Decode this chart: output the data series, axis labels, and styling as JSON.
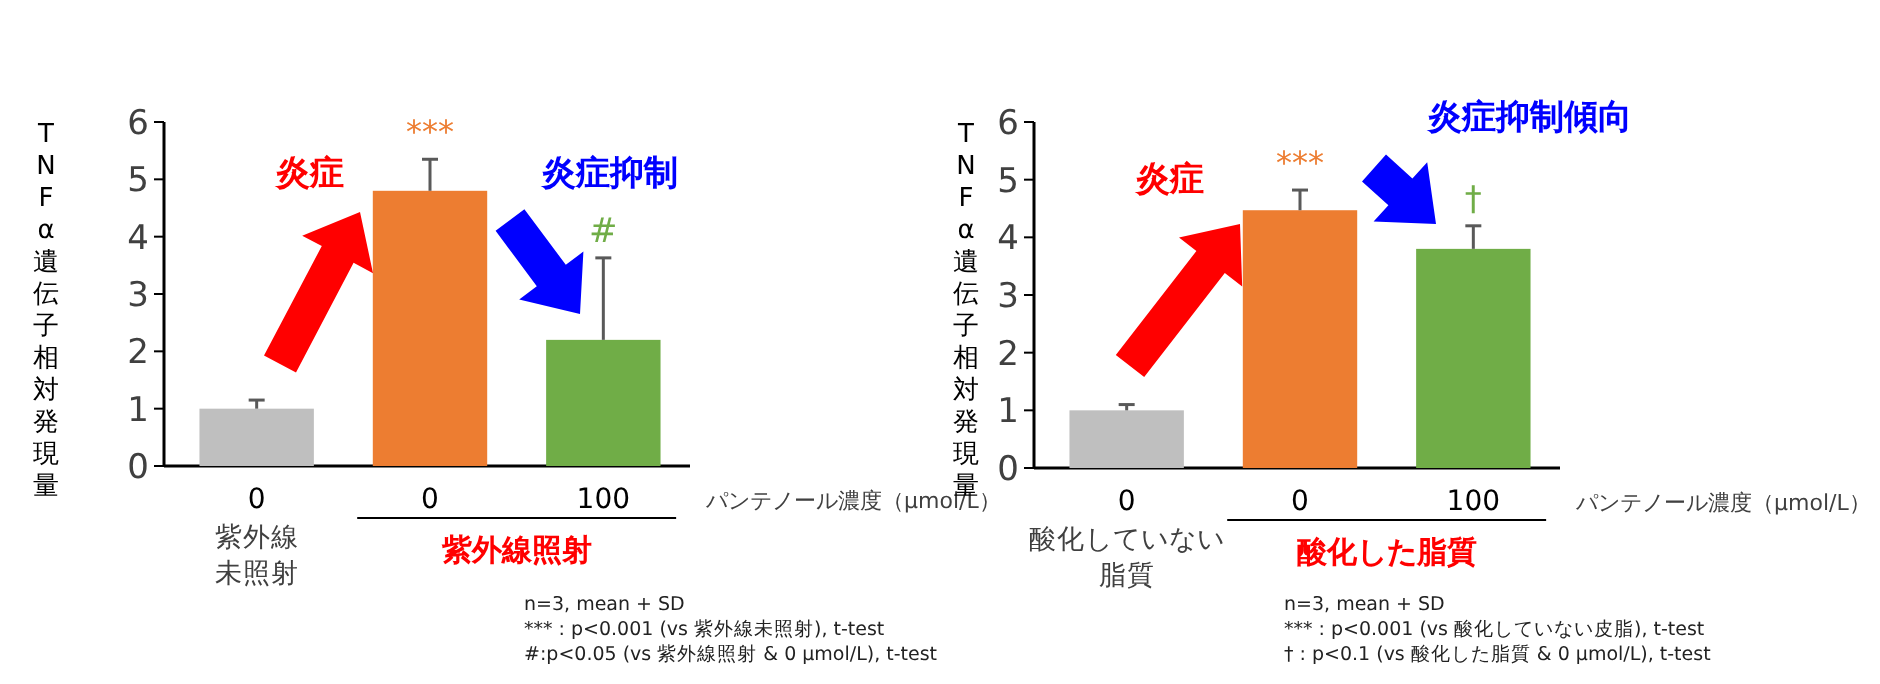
{
  "chart_data": [
    {
      "type": "bar",
      "categories": [
        "0",
        "0",
        "100"
      ],
      "values": [
        1.0,
        4.8,
        2.2
      ],
      "colors": [
        "#bfbfbf",
        "#ed7d31",
        "#70ad47"
      ],
      "errors": [
        [
          1.0,
          1.15
        ],
        [
          4.8,
          5.35
        ],
        [
          2.2,
          3.63
        ]
      ],
      "ylim": [
        0,
        6
      ],
      "yticks": [
        0,
        1,
        2,
        3,
        4,
        5,
        6
      ],
      "ylabel": "TNFα遺伝子相対発現量",
      "xlabel": "パンテノール濃度（μmol/L）",
      "annotations": [
        "***",
        "#",
        "炎症",
        "炎症抑制",
        "紫外線",
        "未照射",
        "紫外線照射",
        "n=3, mean + SD",
        "*** : p<0.001 (vs 紫外線未照射), t-test",
        "#:p<0.05 (vs 紫外線照射 & 0 μmol/L), t-test"
      ]
    },
    {
      "type": "bar",
      "categories": [
        "0",
        "0",
        "100"
      ],
      "values": [
        1.0,
        4.47,
        3.8
      ],
      "colors": [
        "#bfbfbf",
        "#ed7d31",
        "#70ad47"
      ],
      "errors": [
        [
          1.0,
          1.1
        ],
        [
          4.47,
          4.82
        ],
        [
          3.8,
          4.2
        ]
      ],
      "ylim": [
        0,
        6
      ],
      "yticks": [
        0,
        1,
        2,
        3,
        4,
        5,
        6
      ],
      "ylabel": "TNFα遺伝子相対発現量",
      "xlabel": "パンテノール濃度（μmol/L）",
      "annotations": [
        "***",
        "†",
        "炎症",
        "炎症抑制傾向",
        "酸化していない",
        "脂質",
        "酸化した脂質",
        "n=3, mean + SD",
        "*** : p<0.001 (vs 酸化していない皮脂), t-test",
        "† : p<0.1 (vs 酸化した脂質 & 0 μmol/L), t-test"
      ]
    }
  ]
}
